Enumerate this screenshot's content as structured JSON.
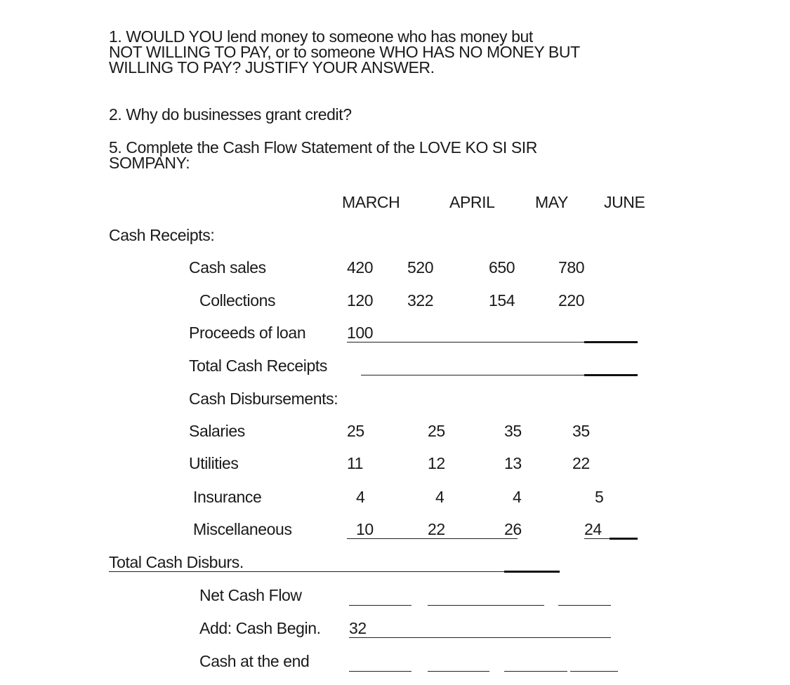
{
  "questions": {
    "q1": [
      "1. WOULD YOU lend money to someone who has money but",
      "NOT WILLING TO PAY, or to someone WHO HAS NO MONEY BUT",
      "WILLING TO PAY? JUSTIFY YOUR ANSWER."
    ],
    "q2": "2. Why do businesses grant credit?",
    "q5": [
      "5.  Complete the Cash Flow Statement of the LOVE KO SI SIR",
      "SOMPANY:"
    ]
  },
  "table": {
    "months": [
      "MARCH",
      "APRIL",
      "MAY",
      "JUNE"
    ],
    "cash_receipts_label": "Cash Receipts:",
    "cash_sales": {
      "label": "Cash sales",
      "values": [
        "420",
        "520",
        "650",
        "780"
      ]
    },
    "collections": {
      "label": "Collections",
      "values": [
        "120",
        "322",
        "154",
        "220"
      ]
    },
    "proceeds": {
      "label": "Proceeds of loan",
      "value": "100"
    },
    "total_receipts": "Total Cash Receipts",
    "disbursements_label": "Cash Disbursements:",
    "salaries": {
      "label": "Salaries",
      "values": [
        "25",
        "25",
        "35",
        "35"
      ]
    },
    "utilities": {
      "label": "Utilities",
      "values": [
        "11",
        "12",
        "13",
        "22"
      ]
    },
    "insurance": {
      "label": "Insurance",
      "values": [
        "4",
        "4",
        "4",
        "5"
      ]
    },
    "misc": {
      "label": "Miscellaneous",
      "values": [
        "10",
        "22",
        "26",
        "24"
      ]
    },
    "total_disburs": "Total Cash Disburs.",
    "net_cash_flow": "Net Cash Flow",
    "cash_begin": {
      "label": "Add: Cash Begin.",
      "value": "32"
    },
    "cash_end": "Cash at the end"
  }
}
